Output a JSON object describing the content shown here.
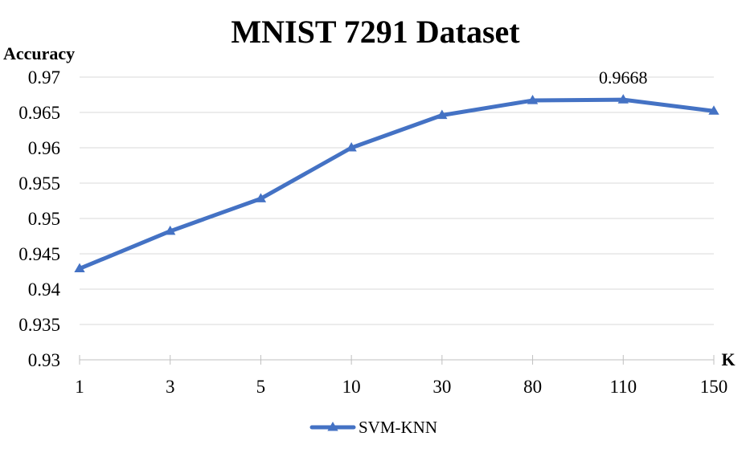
{
  "chart_data": {
    "type": "line",
    "title": "MNIST 7291 Dataset",
    "ylabel": "Accuracy",
    "xlabel": "K",
    "categories": [
      "1",
      "3",
      "5",
      "10",
      "30",
      "80",
      "110",
      "150"
    ],
    "series": [
      {
        "name": "SVM-KNN",
        "values": [
          0.9429,
          0.9482,
          0.9528,
          0.96,
          0.9646,
          0.9667,
          0.9668,
          0.9652
        ],
        "color": "#4472c4",
        "marker": "triangle"
      }
    ],
    "ylim": [
      0.93,
      0.97
    ],
    "yticks": [
      "0.93",
      "0.935",
      "0.94",
      "0.945",
      "0.95",
      "0.955",
      "0.96",
      "0.965",
      "0.97"
    ],
    "annotations": [
      {
        "category": "110",
        "text": "0.9668"
      }
    ],
    "grid": true,
    "legend_position": "bottom"
  }
}
